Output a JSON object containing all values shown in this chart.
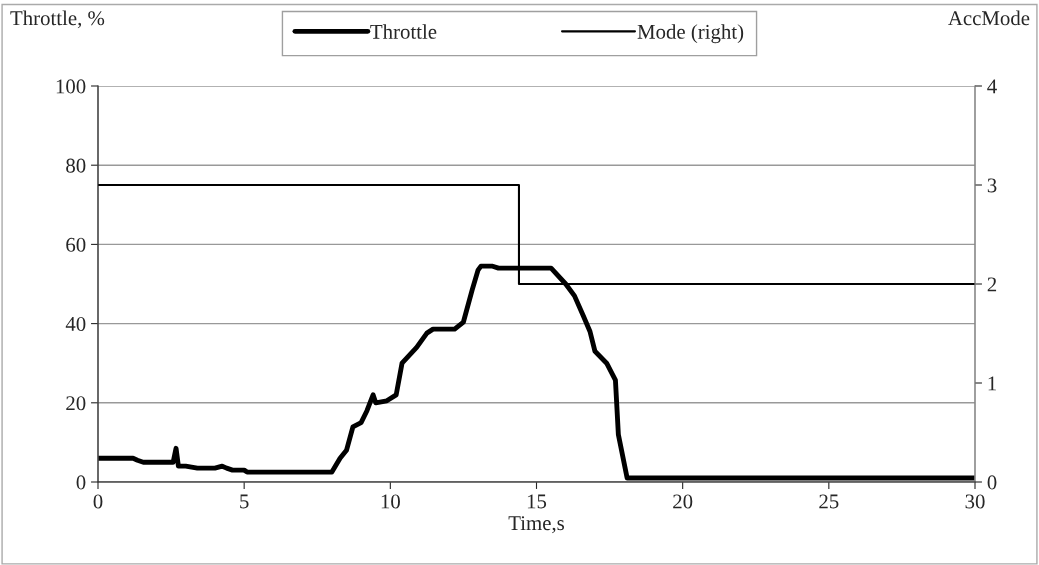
{
  "chart_data": {
    "type": "line",
    "xlabel": "Time,s",
    "ylabel": "Throttle, %",
    "y2label": "AccMode",
    "series": [
      {
        "name": "Throttle",
        "color": "#000000",
        "x": [
          0,
          1.2,
          1.35,
          1.55,
          2.57,
          2.67,
          2.75,
          3.0,
          3.4,
          4.0,
          4.25,
          4.4,
          4.6,
          5.0,
          5.1,
          8.0,
          8.28,
          8.5,
          8.72,
          9.0,
          9.2,
          9.41,
          9.5,
          9.88,
          10.2,
          10.4,
          10.9,
          11.25,
          11.46,
          12.2,
          12.5,
          12.8,
          13.0,
          13.1,
          13.5,
          13.7,
          15.5,
          16.0,
          16.3,
          16.6,
          16.83,
          17.0,
          17.4,
          17.7,
          17.8,
          18.1,
          30
        ],
        "values": [
          6,
          6,
          5.5,
          5,
          5,
          8.5,
          4,
          4,
          3.5,
          3.5,
          4,
          3.5,
          3,
          3,
          2.5,
          2.5,
          6,
          8,
          13.9,
          15,
          18,
          22,
          20,
          20.5,
          22,
          30,
          34,
          37.6,
          38.6,
          38.6,
          40.4,
          48.5,
          53.5,
          54.5,
          54.5,
          54,
          54,
          50,
          47,
          42,
          38,
          33,
          30,
          25.7,
          12,
          1,
          1
        ]
      },
      {
        "name": "Mode (right)",
        "color": "#000000",
        "axis": "y2",
        "x": [
          0,
          14.4,
          14.4,
          30
        ],
        "values": [
          3,
          3,
          2,
          2
        ]
      }
    ],
    "xlim": [
      0,
      30
    ],
    "xticks": [
      0,
      5,
      10,
      15,
      20,
      25,
      30
    ],
    "ylim": [
      0,
      100
    ],
    "yticks": [
      0,
      20,
      40,
      60,
      80,
      100
    ],
    "y2lim": [
      0,
      4
    ],
    "y2ticks": [
      0,
      1,
      2,
      3,
      4
    ],
    "grid": "y",
    "legend": "top"
  }
}
